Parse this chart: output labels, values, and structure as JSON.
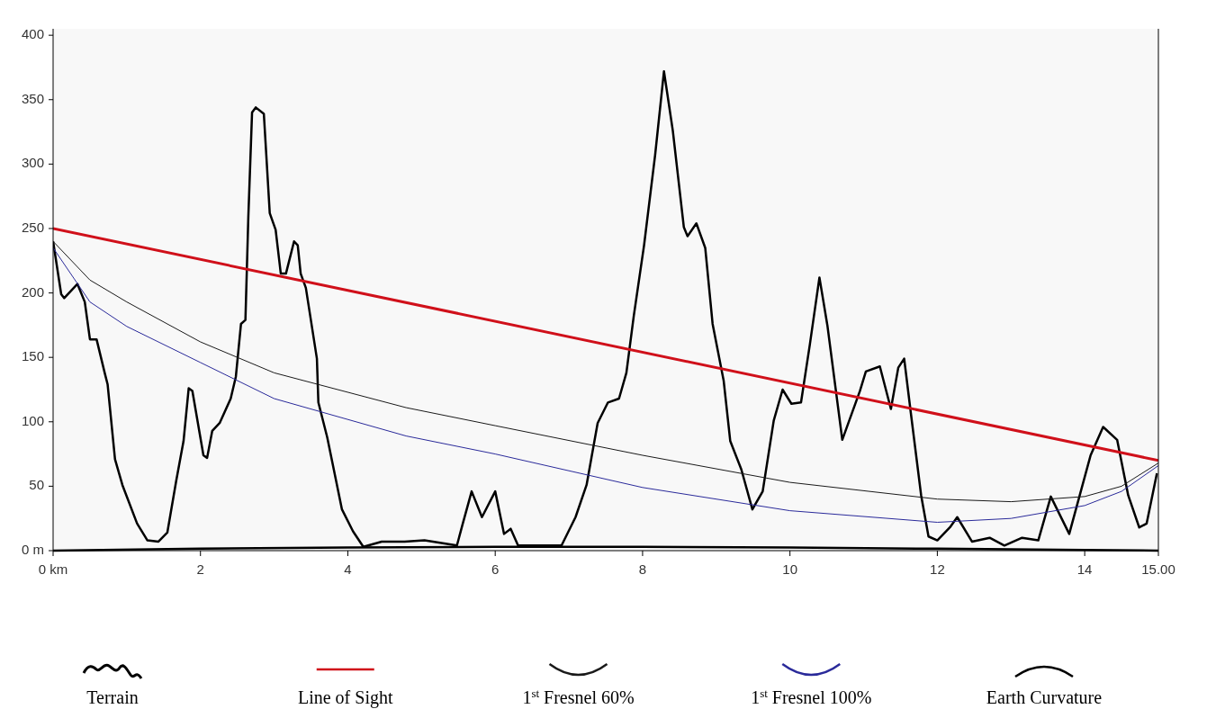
{
  "chart_data": {
    "type": "line",
    "xlim": [
      0,
      15
    ],
    "ylim": [
      0,
      405
    ],
    "xticks": [
      {
        "value": 0,
        "label": "0 km"
      },
      2,
      4,
      6,
      8,
      10,
      12,
      14,
      {
        "value": 15,
        "label": "15.00"
      }
    ],
    "yticks": [
      {
        "value": 0,
        "label": "0 m"
      },
      50,
      100,
      150,
      200,
      250,
      300,
      350,
      400
    ],
    "legend": "bottom",
    "grid": false,
    "marker": "none",
    "line_style": "solid",
    "series": [
      {
        "name": "Terrain",
        "color": "#000000",
        "x": [
          0,
          0.11,
          0.15,
          0.33,
          0.43,
          0.5,
          0.59,
          0.7,
          0.74,
          0.84,
          0.94,
          1.14,
          1.28,
          1.43,
          1.55,
          1.67,
          1.77,
          1.84,
          1.89,
          2.04,
          2.09,
          2.16,
          2.26,
          2.41,
          2.48,
          2.55,
          2.61,
          2.65,
          2.7,
          2.75,
          2.86,
          2.94,
          3.02,
          3.09,
          3.16,
          3.27,
          3.32,
          3.36,
          3.43,
          3.58,
          3.6,
          3.72,
          3.92,
          4.07,
          4.21,
          4.46,
          4.77,
          5.04,
          5.48,
          5.56,
          5.68,
          5.82,
          6.0,
          6.12,
          6.21,
          6.31,
          6.9,
          7.09,
          7.24,
          7.39,
          7.53,
          7.68,
          7.78,
          7.88,
          8.02,
          8.17,
          8.29,
          8.41,
          8.56,
          8.61,
          8.73,
          8.85,
          8.95,
          9.1,
          9.19,
          9.34,
          9.49,
          9.63,
          9.78,
          9.9,
          10.02,
          10.15,
          10.27,
          10.4,
          10.51,
          10.71,
          10.95,
          11.03,
          11.22,
          11.37,
          11.47,
          11.55,
          11.64,
          11.78,
          11.88,
          12.0,
          12.17,
          12.27,
          12.47,
          12.71,
          12.91,
          13.15,
          13.37,
          13.54,
          13.79,
          14.08,
          14.25,
          14.44,
          14.59,
          14.74,
          14.84,
          14.98
        ],
        "values": [
          240,
          199,
          196,
          207,
          193,
          164,
          164,
          138,
          129,
          71,
          51,
          21,
          8,
          7,
          14,
          54,
          85,
          126,
          124,
          74,
          72,
          93,
          99,
          118,
          135,
          176,
          179,
          260,
          340,
          344,
          339,
          262,
          249,
          215,
          215,
          240,
          237,
          215,
          204,
          149,
          115,
          88,
          32,
          15,
          3,
          7,
          7,
          8,
          4,
          21,
          46,
          26,
          46,
          13,
          17,
          4,
          4,
          26,
          51,
          99,
          115,
          118,
          138,
          182,
          237,
          307,
          372,
          326,
          251,
          244,
          254,
          235,
          176,
          132,
          85,
          63,
          32,
          46,
          101,
          125,
          114,
          115,
          160,
          212,
          174,
          86,
          124,
          139,
          143,
          110,
          142,
          149,
          107,
          43,
          11,
          8,
          18,
          26,
          7,
          10,
          4,
          10,
          8,
          42,
          13,
          74,
          96,
          86,
          43,
          18,
          21,
          60
        ]
      },
      {
        "name": "Line of Sight",
        "color": "#d0101a",
        "x": [
          0,
          15
        ],
        "values": [
          250,
          70
        ]
      },
      {
        "name": "1$^{st}$ Fresnel 60%",
        "color": "#1a1a1a",
        "x": [
          0,
          0.5,
          1,
          2,
          3,
          4.79,
          6,
          8,
          10,
          12,
          13,
          14,
          14.5,
          15
        ],
        "values": [
          240,
          210,
          193,
          162,
          138,
          111,
          97,
          74,
          53,
          40,
          38,
          42,
          50,
          68
        ]
      },
      {
        "name": "1$^{st}$ Fresnel 100%",
        "color": "#2a2a9a",
        "x": [
          0,
          0.5,
          1,
          2,
          3,
          4.79,
          6,
          8,
          10,
          12,
          13,
          14,
          14.5,
          15
        ],
        "values": [
          235,
          193,
          174,
          146,
          118,
          89,
          75,
          49,
          31,
          22,
          25,
          35,
          46,
          66
        ]
      },
      {
        "name": "Earth Curvature",
        "color": "#000000",
        "x": [
          0,
          2,
          4,
          6,
          8,
          10,
          12,
          14,
          15
        ],
        "values": [
          0,
          1.5,
          2.5,
          3,
          3,
          2.5,
          1.5,
          0.5,
          0
        ]
      }
    ]
  }
}
